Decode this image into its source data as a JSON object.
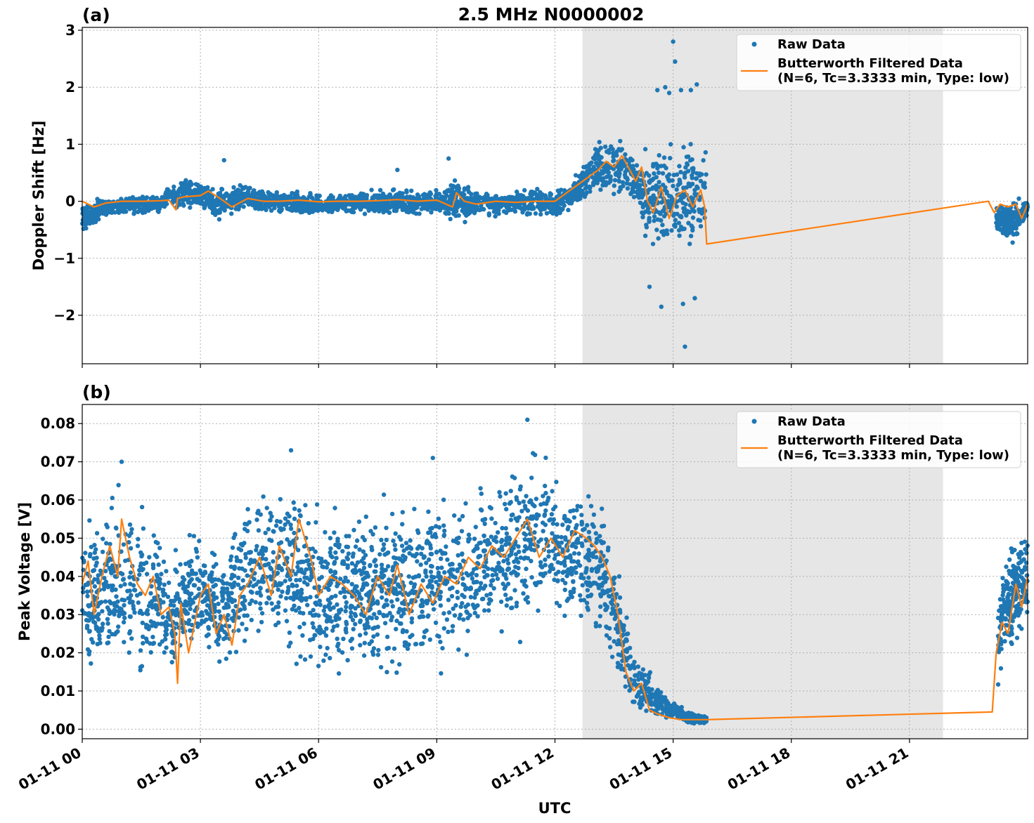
{
  "figure": {
    "title": "2.5 MHz N0000002",
    "xlabel": "UTC"
  },
  "colors": {
    "raw": "#1f77b4",
    "filtered": "#ff7f0e",
    "shade": "#e6e6e6",
    "grid": "#b0b0b0"
  },
  "legend": {
    "raw_label": "Raw Data",
    "filtered_label_line1": "Butterworth Filtered Data",
    "filtered_label_line2": "(N=6, Tc=3.3333 min, Type: low)"
  },
  "chart_data": [
    {
      "type": "scatter",
      "panel_label": "(a)",
      "ylabel": "Doppler Shift [Hz]",
      "xlim": [
        0,
        24
      ],
      "ylim": [
        -2.85,
        3.05
      ],
      "y_ticks": [
        3,
        2,
        1,
        0,
        -1,
        -2
      ],
      "y_tick_labels": [
        "3",
        "2",
        "1",
        "0",
        "−1",
        "−2"
      ],
      "x_ticks": [
        0,
        3,
        6,
        9,
        12,
        15,
        18,
        21
      ],
      "x_tick_labels": [
        "01-11 00",
        "01-11 03",
        "01-11 06",
        "01-11 09",
        "01-11 12",
        "01-11 15",
        "01-11 18",
        "01-11 21"
      ],
      "shaded_span": [
        12.7,
        21.85
      ],
      "grid": true,
      "legend_position": "top-right",
      "series": [
        {
          "name": "Raw Data",
          "kind": "scatter-band",
          "x": [
            0,
            0.5,
            1,
            1.5,
            2,
            2.2,
            2.4,
            2.6,
            3,
            3.4,
            3.6,
            4,
            4.5,
            5,
            5.5,
            6,
            6.5,
            7,
            7.5,
            8,
            8.5,
            9,
            9.5,
            10,
            10.5,
            11,
            11.5,
            12,
            12.5,
            12.8,
            13,
            13.3,
            13.6,
            13.9,
            14.1,
            14.3,
            14.6,
            14.9,
            15.1,
            15.4,
            15.7,
            15.85
          ],
          "y_low": [
            -0.65,
            -0.35,
            -0.3,
            -0.25,
            -0.22,
            -0.05,
            -0.25,
            -0.2,
            -0.2,
            -0.45,
            -0.3,
            -0.25,
            -0.2,
            -0.25,
            -0.3,
            -0.3,
            -0.25,
            -0.25,
            -0.3,
            -0.3,
            -0.25,
            -0.25,
            -0.5,
            -0.3,
            -0.3,
            -0.3,
            -0.3,
            -0.35,
            -0.15,
            -0.05,
            0.05,
            0.05,
            0.05,
            0.0,
            -0.1,
            -0.9,
            -1.1,
            -1.3,
            -1.2,
            -1.1,
            -0.9,
            -0.85
          ],
          "y_high": [
            0.05,
            0.1,
            0.12,
            0.12,
            0.15,
            0.3,
            0.35,
            0.45,
            0.45,
            0.3,
            0.3,
            0.35,
            0.25,
            0.22,
            0.2,
            0.18,
            0.15,
            0.2,
            0.25,
            0.25,
            0.2,
            0.25,
            0.5,
            0.2,
            0.2,
            0.25,
            0.28,
            0.25,
            0.5,
            0.9,
            1.1,
            1.25,
            1.2,
            1.0,
            0.7,
            1.1,
            1.3,
            1.5,
            1.2,
            1.2,
            1.3,
            1.25
          ],
          "x2": [
            23.2,
            23.4,
            23.6,
            23.8,
            24
          ],
          "y2_low": [
            -0.7,
            -0.75,
            -0.8,
            -0.6,
            -0.35
          ],
          "y2_high": [
            0.05,
            0.08,
            0.05,
            0.1,
            0.05
          ],
          "outliers_x": [
            14.6,
            14.8,
            14.9,
            15.0,
            15.05,
            15.2,
            15.3,
            15.45,
            15.6,
            14.4,
            14.7,
            15.25,
            15.55,
            8.0,
            9.3,
            3.6
          ],
          "outliers_y": [
            1.95,
            2.0,
            1.9,
            2.8,
            2.45,
            1.95,
            -2.55,
            1.95,
            2.05,
            -1.5,
            -1.85,
            -1.8,
            -1.7,
            0.55,
            0.75,
            0.72
          ]
        },
        {
          "name": "Butterworth Filtered Data",
          "kind": "line",
          "x": [
            0,
            0.3,
            0.6,
            1.0,
            1.5,
            2.0,
            2.2,
            2.38,
            2.42,
            2.6,
            3.0,
            3.2,
            3.5,
            3.8,
            4.2,
            4.6,
            5.0,
            5.5,
            6.0,
            6.5,
            7.0,
            7.5,
            8.0,
            8.5,
            9.0,
            9.4,
            9.5,
            9.7,
            10.0,
            10.5,
            11.0,
            11.5,
            12.0,
            12.3,
            12.6,
            12.9,
            13.1,
            13.3,
            13.5,
            13.7,
            13.9,
            14.05,
            14.2,
            14.35,
            14.5,
            14.7,
            14.9,
            15.1,
            15.3,
            15.5,
            15.7,
            15.8,
            15.85,
            23.0,
            23.15,
            23.3,
            23.5,
            23.7,
            23.85,
            24.0
          ],
          "y": [
            0.0,
            -0.1,
            -0.03,
            0.0,
            0.0,
            0.01,
            0.02,
            -0.15,
            0.05,
            0.08,
            0.1,
            0.18,
            0.05,
            -0.1,
            0.05,
            0.0,
            0.0,
            0.02,
            -0.01,
            0.0,
            0.0,
            0.01,
            0.03,
            0.0,
            0.02,
            -0.1,
            0.15,
            0.0,
            -0.05,
            0.0,
            -0.02,
            0.0,
            0.0,
            0.15,
            0.3,
            0.45,
            0.55,
            0.7,
            0.6,
            0.8,
            0.55,
            0.35,
            0.6,
            0.0,
            -0.2,
            0.25,
            -0.3,
            0.1,
            0.2,
            -0.1,
            0.2,
            -0.1,
            -0.75,
            0.0,
            -0.2,
            -0.05,
            -0.1,
            -0.05,
            -0.3,
            -0.05
          ]
        }
      ]
    },
    {
      "type": "scatter",
      "panel_label": "(b)",
      "ylabel": "Peak Voltage [V]",
      "xlim": [
        0,
        24
      ],
      "ylim": [
        -0.0025,
        0.085
      ],
      "y_ticks": [
        0.0,
        0.01,
        0.02,
        0.03,
        0.04,
        0.05,
        0.06,
        0.07,
        0.08
      ],
      "y_tick_labels": [
        "0.00",
        "0.01",
        "0.02",
        "0.03",
        "0.04",
        "0.05",
        "0.06",
        "0.07",
        "0.08"
      ],
      "x_ticks": [
        0,
        3,
        6,
        9,
        12,
        15,
        18,
        21
      ],
      "x_tick_labels": [
        "01-11 00",
        "01-11 03",
        "01-11 06",
        "01-11 09",
        "01-11 12",
        "01-11 15",
        "01-11 18",
        "01-11 21"
      ],
      "shaded_span": [
        12.7,
        21.85
      ],
      "grid": true,
      "legend_position": "top-right",
      "series": [
        {
          "name": "Raw Data",
          "kind": "scatter-band",
          "x": [
            0,
            0.5,
            1.0,
            1.5,
            2.0,
            2.3,
            2.5,
            3.0,
            3.5,
            4.0,
            4.5,
            5.0,
            5.5,
            6.0,
            6.5,
            7.0,
            7.5,
            8.0,
            8.5,
            9.0,
            9.5,
            10.0,
            10.5,
            11.0,
            11.5,
            12.0,
            12.5,
            13.0,
            13.3,
            13.6,
            13.9,
            14.1,
            14.3,
            14.5,
            14.8,
            15.1,
            15.4,
            15.7,
            15.85
          ],
          "y_low": [
            0.015,
            0.012,
            0.01,
            0.009,
            0.008,
            0.012,
            0.015,
            0.018,
            0.012,
            0.015,
            0.02,
            0.018,
            0.015,
            0.01,
            0.012,
            0.015,
            0.01,
            0.01,
            0.012,
            0.012,
            0.015,
            0.015,
            0.02,
            0.02,
            0.025,
            0.025,
            0.025,
            0.02,
            0.015,
            0.01,
            0.005,
            0.002,
            0.002,
            0.002,
            0.002,
            0.002,
            0.001,
            0.001,
            0.001
          ],
          "y_high": [
            0.056,
            0.06,
            0.068,
            0.063,
            0.056,
            0.045,
            0.052,
            0.055,
            0.048,
            0.06,
            0.065,
            0.07,
            0.066,
            0.065,
            0.06,
            0.06,
            0.062,
            0.063,
            0.065,
            0.064,
            0.066,
            0.068,
            0.072,
            0.075,
            0.078,
            0.07,
            0.068,
            0.066,
            0.06,
            0.045,
            0.03,
            0.02,
            0.018,
            0.014,
            0.01,
            0.007,
            0.005,
            0.004,
            0.004
          ],
          "x2": [
            23.25,
            23.4,
            23.6,
            23.8,
            24
          ],
          "y2_low": [
            0.005,
            0.015,
            0.018,
            0.022,
            0.025
          ],
          "y2_high": [
            0.04,
            0.048,
            0.052,
            0.055,
            0.056
          ],
          "outliers_x": [
            11.3,
            5.3,
            1.0,
            8.9
          ],
          "outliers_y": [
            0.081,
            0.073,
            0.07,
            0.071
          ]
        },
        {
          "name": "Butterworth Filtered Data",
          "kind": "line",
          "x": [
            0,
            0.15,
            0.3,
            0.5,
            0.7,
            0.9,
            1.0,
            1.2,
            1.4,
            1.6,
            1.8,
            2.0,
            2.2,
            2.35,
            2.42,
            2.5,
            2.7,
            3.0,
            3.2,
            3.4,
            3.6,
            3.8,
            4.0,
            4.2,
            4.5,
            4.8,
            5.0,
            5.3,
            5.5,
            5.8,
            6.0,
            6.3,
            6.6,
            6.9,
            7.2,
            7.5,
            7.8,
            8.0,
            8.3,
            8.6,
            8.9,
            9.2,
            9.5,
            9.8,
            10.1,
            10.4,
            10.7,
            11.0,
            11.3,
            11.6,
            11.9,
            12.2,
            12.5,
            12.8,
            13.0,
            13.2,
            13.4,
            13.6,
            13.8,
            14.0,
            14.2,
            14.4,
            14.6,
            14.9,
            15.2,
            15.5,
            15.85,
            23.1,
            23.2,
            23.35,
            23.5,
            23.7,
            23.85,
            24.0
          ],
          "y": [
            0.038,
            0.044,
            0.03,
            0.04,
            0.048,
            0.04,
            0.055,
            0.045,
            0.038,
            0.035,
            0.04,
            0.03,
            0.032,
            0.025,
            0.012,
            0.033,
            0.02,
            0.035,
            0.038,
            0.025,
            0.03,
            0.022,
            0.035,
            0.038,
            0.045,
            0.035,
            0.048,
            0.04,
            0.055,
            0.045,
            0.035,
            0.04,
            0.038,
            0.035,
            0.03,
            0.04,
            0.035,
            0.043,
            0.03,
            0.038,
            0.033,
            0.04,
            0.038,
            0.045,
            0.042,
            0.048,
            0.045,
            0.05,
            0.055,
            0.045,
            0.05,
            0.045,
            0.052,
            0.05,
            0.048,
            0.045,
            0.04,
            0.03,
            0.015,
            0.01,
            0.012,
            0.005,
            0.004,
            0.003,
            0.0025,
            0.0025,
            0.0025,
            0.0045,
            0.02,
            0.028,
            0.025,
            0.038,
            0.032,
            0.04
          ]
        }
      ]
    }
  ]
}
